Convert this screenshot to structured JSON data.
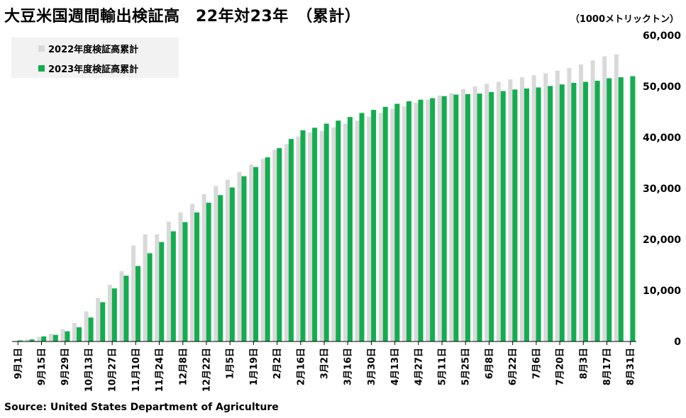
{
  "header": {
    "title": "大豆米国週間輸出検証高　22年対23年　（累計）",
    "unit": "（1000メトリックトン）"
  },
  "footer": {
    "source": "Source: United States Department of Agriculture"
  },
  "colors": {
    "series_2022": "#d9d9d9",
    "series_2023": "#13ad4f",
    "axis": "#000000"
  },
  "chart_data": {
    "type": "bar",
    "title": "大豆米国週間輸出検証高　22年対23年　（累計）",
    "ylabel": "（1000メトリックトン）",
    "ylim": [
      0,
      60000
    ],
    "yticks": [
      0,
      10000,
      20000,
      30000,
      40000,
      50000,
      60000
    ],
    "ytick_labels": [
      "0",
      "10,000",
      "20,000",
      "30,000",
      "40,000",
      "50,000",
      "60,000"
    ],
    "grid": false,
    "legend_position": "top-left",
    "categories": [
      "9月1日",
      "9月8日",
      "9月15日",
      "9月22日",
      "9月29日",
      "10月6日",
      "10月13日",
      "10月20日",
      "10月27日",
      "11月3日",
      "11月10日",
      "11月17日",
      "11月24日",
      "12月1日",
      "12月8日",
      "12月15日",
      "12月22日",
      "12月29日",
      "1月5日",
      "1月12日",
      "1月19日",
      "1月26日",
      "2月2日",
      "2月9日",
      "2月16日",
      "2月23日",
      "3月2日",
      "3月9日",
      "3月16日",
      "3月23日",
      "3月30日",
      "4月6日",
      "4月13日",
      "4月20日",
      "4月27日",
      "5月4日",
      "5月11日",
      "5月18日",
      "5月25日",
      "6月1日",
      "6月8日",
      "6月15日",
      "6月22日",
      "6月29日",
      "7月6日",
      "7月13日",
      "7月20日",
      "7月27日",
      "8月3日",
      "8月10日",
      "8月17日",
      "8月24日",
      "8月31日"
    ],
    "tick_labels": [
      "9月1日",
      "9月15日",
      "9月29日",
      "10月13日",
      "10月27日",
      "11月10日",
      "11月24日",
      "12月8日",
      "12月22日",
      "1月5日",
      "1月19日",
      "2月2日",
      "2月16日",
      "3月2日",
      "3月16日",
      "3月30日",
      "4月13日",
      "4月27日",
      "5月11日",
      "5月25日",
      "6月8日",
      "6月22日",
      "7月6日",
      "7月20日",
      "8月3日",
      "8月17日",
      "8月31日"
    ],
    "series": [
      {
        "name": "2022年度検証高累計",
        "values": [
          100,
          400,
          900,
          1500,
          2400,
          3600,
          5900,
          8500,
          11100,
          13800,
          18800,
          21000,
          21000,
          23500,
          25300,
          27000,
          28900,
          30500,
          31700,
          33200,
          34700,
          35800,
          37600,
          38700,
          40200,
          41000,
          41300,
          42000,
          42700,
          43300,
          44100,
          44800,
          45600,
          46100,
          46800,
          47400,
          48200,
          48700,
          49500,
          50000,
          50500,
          50900,
          51400,
          51800,
          52200,
          52600,
          53100,
          53600,
          54300,
          55100,
          55900,
          56300,
          null
        ]
      },
      {
        "name": "2023年度検証高累計",
        "values": [
          200,
          400,
          1000,
          1300,
          2000,
          2800,
          4700,
          7700,
          10400,
          12900,
          14800,
          17300,
          19500,
          21600,
          23400,
          25300,
          27200,
          28700,
          30200,
          32400,
          34200,
          36100,
          37900,
          39700,
          41400,
          41900,
          42700,
          43300,
          44000,
          44800,
          45400,
          46000,
          46600,
          47100,
          47400,
          47700,
          48100,
          48400,
          48500,
          48600,
          48900,
          49100,
          49400,
          49600,
          49800,
          50100,
          50400,
          50700,
          50900,
          51100,
          51600,
          51800,
          52000
        ]
      }
    ]
  }
}
